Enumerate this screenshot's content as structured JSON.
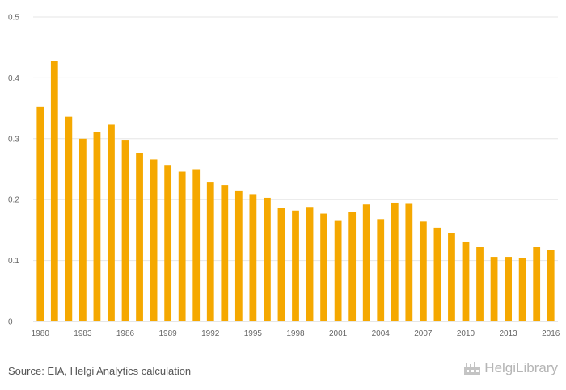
{
  "chart_data": {
    "type": "bar",
    "title": "",
    "xlabel": "",
    "ylabel": "",
    "ylim": [
      0,
      0.5
    ],
    "y_ticks": [
      "0",
      "0.1",
      "0.2",
      "0.3",
      "0.4",
      "0.5"
    ],
    "x_tick_labels": [
      "1980",
      "1983",
      "1986",
      "1989",
      "1992",
      "1995",
      "1998",
      "2001",
      "2004",
      "2007",
      "2010",
      "2013",
      "2016"
    ],
    "categories": [
      "1980",
      "1981",
      "1982",
      "1983",
      "1984",
      "1985",
      "1986",
      "1987",
      "1988",
      "1989",
      "1990",
      "1991",
      "1992",
      "1993",
      "1994",
      "1995",
      "1996",
      "1997",
      "1998",
      "1999",
      "2000",
      "2001",
      "2002",
      "2003",
      "2004",
      "2005",
      "2006",
      "2007",
      "2008",
      "2009",
      "2010",
      "2011",
      "2012",
      "2013",
      "2014",
      "2015",
      "2016"
    ],
    "values": [
      0.353,
      0.428,
      0.336,
      0.3,
      0.311,
      0.323,
      0.297,
      0.277,
      0.266,
      0.257,
      0.246,
      0.25,
      0.228,
      0.224,
      0.215,
      0.209,
      0.203,
      0.187,
      0.182,
      0.188,
      0.177,
      0.165,
      0.18,
      0.192,
      0.168,
      0.195,
      0.193,
      0.164,
      0.154,
      0.145,
      0.13,
      0.122,
      0.106,
      0.106,
      0.104,
      0.122,
      0.117
    ],
    "grid": true,
    "bar_color": "#f5a800"
  },
  "footer": {
    "source": "Source: EIA, Helgi Analytics calculation",
    "logo_text": "HelgiLibrary"
  },
  "colors": {
    "bar": "#f5a800",
    "grid": "#e6e6e6",
    "text": "#666666"
  }
}
